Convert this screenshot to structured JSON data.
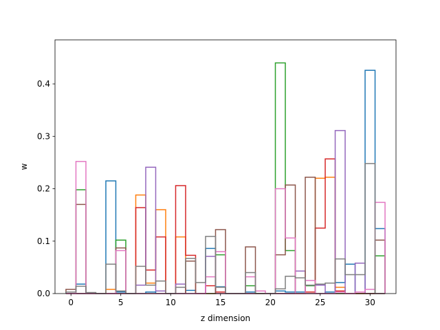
{
  "chart_data": {
    "type": "bar",
    "style": "step-histogram",
    "xlabel": "z dimension",
    "ylabel": "w",
    "xlim": [
      -1.6,
      32.6
    ],
    "ylim": [
      0,
      0.484
    ],
    "xticks": [
      0,
      5,
      10,
      15,
      20,
      25,
      30
    ],
    "yticks": [
      0.0,
      0.1,
      0.2,
      0.3,
      0.4
    ],
    "grid": false,
    "legend": "none",
    "series": [
      {
        "color": "#1f77b4",
        "values": [
          0.003,
          0.018,
          0,
          0,
          0.215,
          0.003,
          0,
          0,
          0.003,
          0,
          0,
          0,
          0.006,
          0,
          0.086,
          0.013,
          0,
          0,
          0.003,
          0,
          0,
          0.005,
          0.003,
          0.003,
          0.003,
          0,
          0.003,
          0.021,
          0.056,
          0,
          0.426,
          0.124
        ]
      },
      {
        "color": "#ff7f0e",
        "values": [
          0,
          0,
          0,
          0,
          0.008,
          0,
          0,
          0.188,
          0.02,
          0.16,
          0,
          0.108,
          0,
          0,
          0,
          0,
          0,
          0,
          0,
          0,
          0,
          0,
          0,
          0,
          0,
          0.22,
          0.222,
          0.012,
          0,
          0,
          0,
          0
        ]
      },
      {
        "color": "#2ca02c",
        "values": [
          0,
          0.198,
          0,
          0,
          0,
          0.102,
          0,
          0,
          0,
          0,
          0,
          0,
          0,
          0,
          0,
          0.074,
          0,
          0,
          0.015,
          0,
          0,
          0.44,
          0.082,
          0,
          0.015,
          0,
          0,
          0,
          0,
          0,
          0,
          0.072
        ]
      },
      {
        "color": "#d62728",
        "values": [
          0,
          0,
          0,
          0,
          0,
          0,
          0,
          0.164,
          0.045,
          0.108,
          0,
          0.206,
          0.073,
          0,
          0.015,
          0.003,
          0,
          0,
          0,
          0,
          0,
          0,
          0,
          0,
          0.003,
          0.125,
          0.257,
          0.005,
          0,
          0,
          0,
          0
        ]
      },
      {
        "color": "#9467bd",
        "values": [
          0,
          0,
          0,
          0,
          0,
          0,
          0,
          0.016,
          0.241,
          0.005,
          0,
          0.018,
          0,
          0,
          0.071,
          0,
          0,
          0,
          0,
          0,
          0,
          0,
          0,
          0.043,
          0,
          0.016,
          0,
          0.311,
          0,
          0.058,
          0,
          0
        ]
      },
      {
        "color": "#8c564b",
        "values": [
          0.008,
          0.17,
          0,
          0,
          0,
          0.087,
          0,
          0,
          0,
          0,
          0,
          0,
          0.062,
          0,
          0,
          0.122,
          0,
          0,
          0.089,
          0,
          0,
          0.074,
          0.207,
          0,
          0.222,
          0,
          0,
          0,
          0,
          0,
          0,
          0.102
        ]
      },
      {
        "color": "#e377c2",
        "values": [
          0,
          0.252,
          0,
          0,
          0,
          0.082,
          0,
          0,
          0,
          0,
          0,
          0,
          0,
          0,
          0.032,
          0.08,
          0,
          0,
          0.032,
          0.005,
          0,
          0.2,
          0.106,
          0,
          0.025,
          0,
          0,
          0.003,
          0,
          0.003,
          0.008,
          0.174
        ]
      },
      {
        "color": "#7f7f7f",
        "values": [
          0.003,
          0.014,
          0.002,
          0,
          0.056,
          0.005,
          0,
          0.052,
          0.016,
          0.024,
          0,
          0.012,
          0.067,
          0.021,
          0.109,
          0.012,
          0,
          0,
          0.04,
          0,
          0,
          0.009,
          0.033,
          0.03,
          0.016,
          0.018,
          0.02,
          0.066,
          0.036,
          0.036,
          0.248,
          0
        ]
      }
    ]
  }
}
